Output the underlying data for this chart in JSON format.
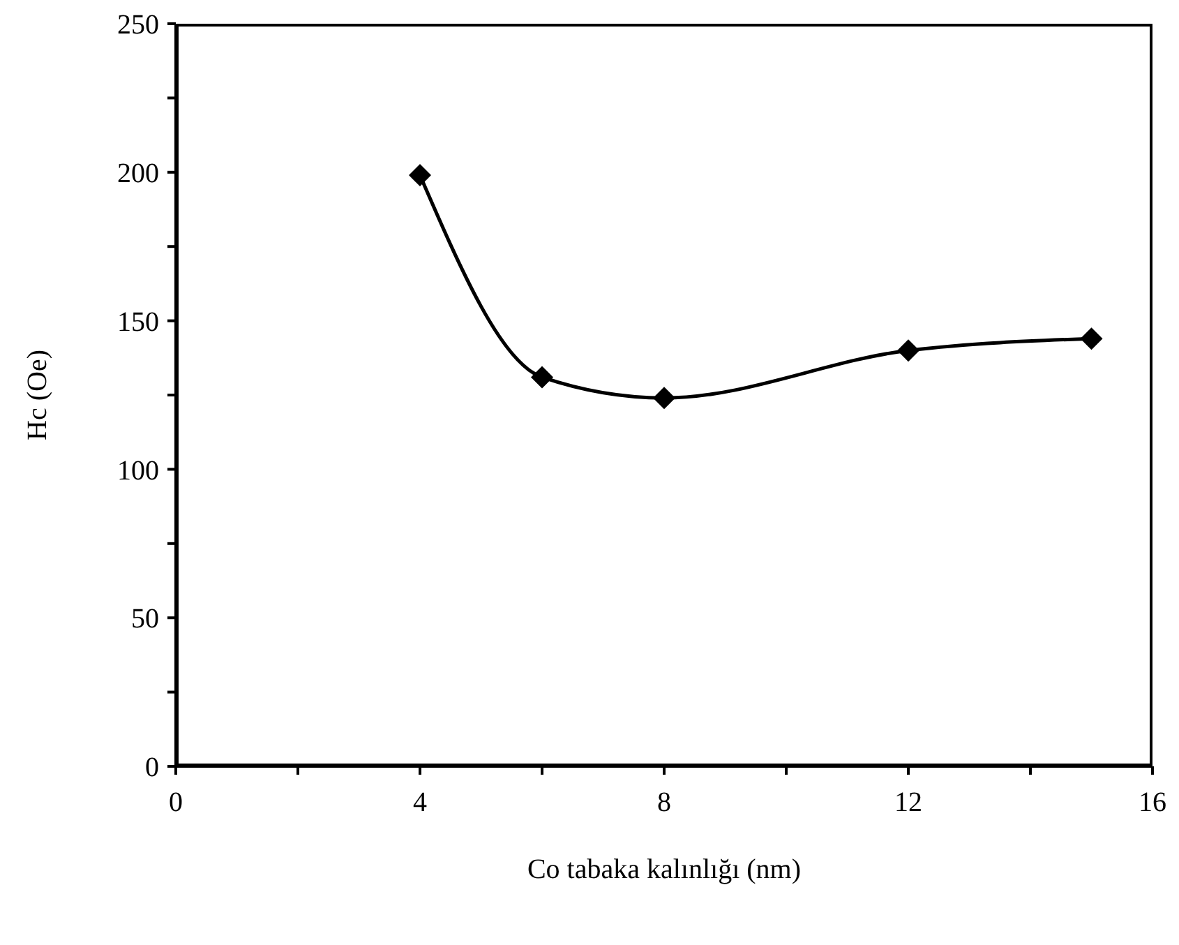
{
  "chart_data": {
    "type": "line",
    "xlabel": "Co tabaka kalınlığı (nm)",
    "ylabel": "Hc (Oe)",
    "x": [
      4,
      6,
      8,
      12,
      15
    ],
    "series": [
      {
        "color": "#000000",
        "values": [
          199,
          131,
          124,
          140,
          144
        ]
      }
    ],
    "xlim": [
      0,
      16
    ],
    "xticks": [
      0,
      {
        "value": 2,
        "label": null
      },
      4,
      {
        "value": 6,
        "label": null
      },
      8,
      {
        "value": 10,
        "label": null
      },
      12,
      {
        "value": 14,
        "label": null
      },
      16
    ],
    "ylim": [
      0,
      250
    ],
    "yticks": [
      0,
      {
        "value": 25,
        "label": null
      },
      50,
      {
        "value": 75,
        "label": null
      },
      100,
      {
        "value": 125,
        "label": null
      },
      150,
      {
        "value": 175,
        "label": null
      },
      200,
      {
        "value": 225,
        "label": null
      },
      250
    ],
    "grid": false,
    "legend": false,
    "marker": "diamond",
    "line_style": "solid"
  }
}
